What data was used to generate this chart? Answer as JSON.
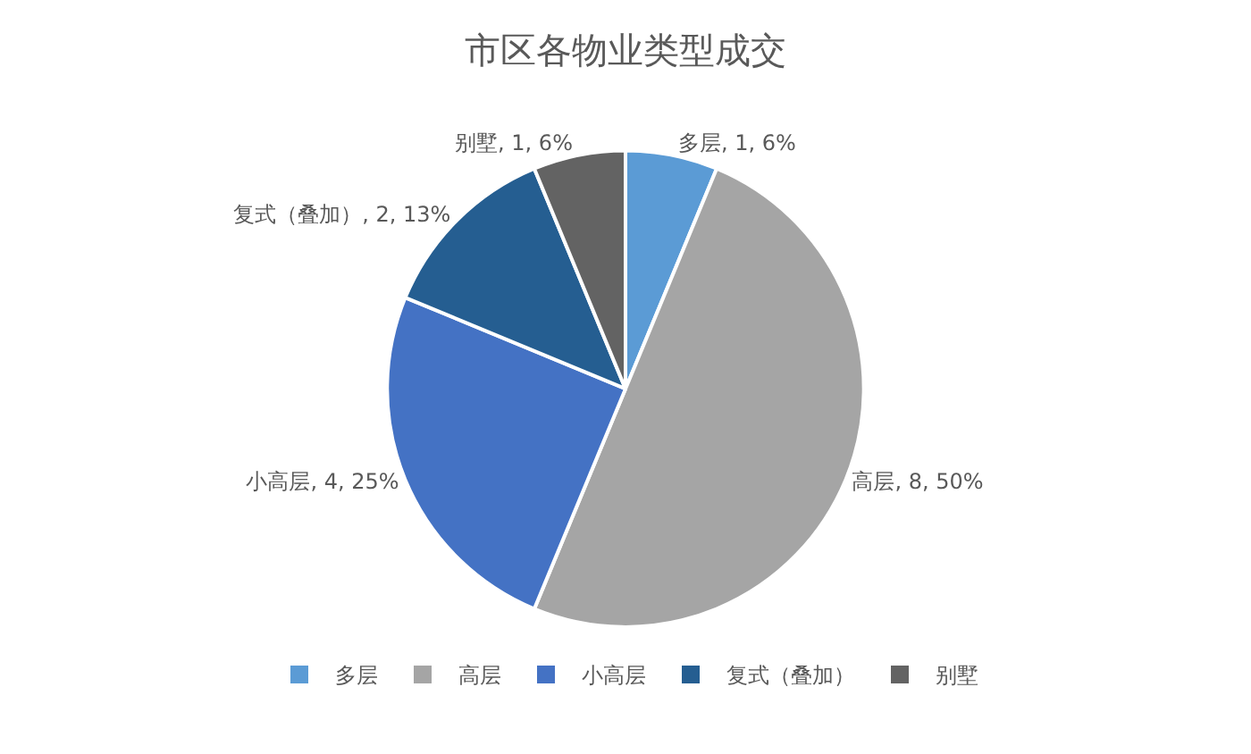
{
  "chart_data": {
    "type": "pie",
    "title": "市区各物业类型成交",
    "categories": [
      "多层",
      "高层",
      "小高层",
      "复式（叠加）",
      "别墅"
    ],
    "values": [
      1,
      8,
      4,
      2,
      1
    ],
    "value_labels": [
      "多层, 1, 6%",
      "高层, 8, 50%",
      "小高层, 4, 25%",
      "复式（叠加）, 2, 13%",
      "别墅, 1, 6%"
    ],
    "colors": [
      "#5b9bd5",
      "#a5a5a5",
      "#4472c4",
      "#255e91",
      "#636363"
    ],
    "legend": "bottom"
  }
}
